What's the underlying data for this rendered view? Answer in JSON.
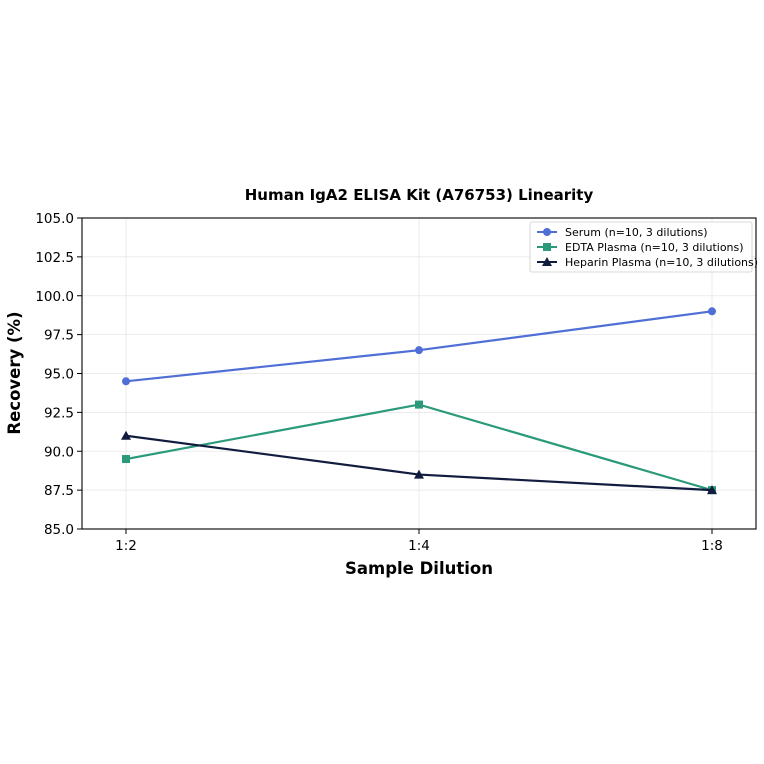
{
  "chart_data": {
    "type": "line",
    "title": "Human IgA2 ELISA Kit (A76753) Linearity",
    "xlabel": "Sample Dilution",
    "ylabel": "Recovery (%)",
    "categories": [
      "1:2",
      "1:4",
      "1:8"
    ],
    "ylim": [
      85.0,
      105.0
    ],
    "yticks": [
      "85.0",
      "87.5",
      "90.0",
      "92.5",
      "95.0",
      "97.5",
      "100.0",
      "102.5",
      "105.0"
    ],
    "grid": true,
    "legend_position": "top-right",
    "series": [
      {
        "name": "Serum (n=10, 3 dilutions)",
        "values": [
          94.5,
          96.5,
          99.0
        ],
        "color": "#4f6fd6",
        "marker": "circle"
      },
      {
        "name": "EDTA Plasma (n=10, 3 dilutions)",
        "values": [
          89.5,
          93.0,
          87.5
        ],
        "color": "#2a9a7a",
        "marker": "square"
      },
      {
        "name": "Heparin Plasma (n=10, 3 dilutions)",
        "values": [
          91.0,
          88.5,
          87.5
        ],
        "color": "#121c3e",
        "marker": "triangle"
      }
    ]
  }
}
